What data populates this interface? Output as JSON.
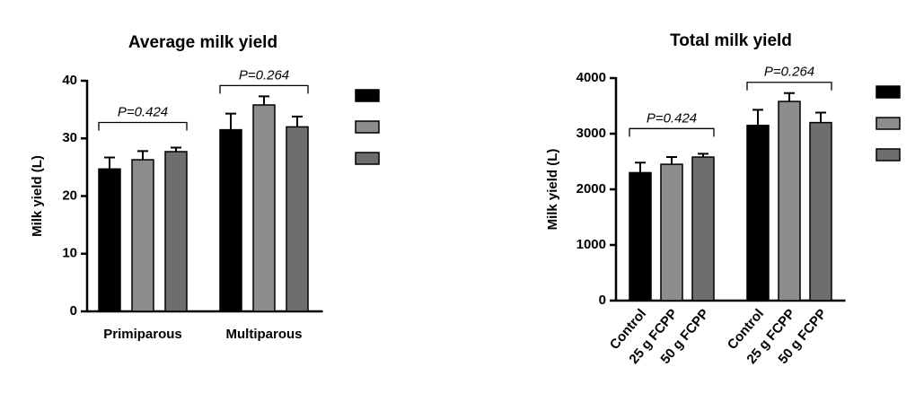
{
  "chart_data": [
    {
      "type": "bar",
      "title": "Average milk yield",
      "y_label": "Milk yield (L)",
      "categories": [
        "Primiparous",
        "Multiparous"
      ],
      "group_annotations": [
        "P=0.424",
        "P=0.264"
      ],
      "series": [
        {
          "color": "#000000",
          "values": [
            24.7,
            31.5
          ],
          "errors": [
            2.0,
            2.8
          ]
        },
        {
          "color": "#8c8c8c",
          "values": [
            26.3,
            35.8
          ],
          "errors": [
            1.5,
            1.5
          ]
        },
        {
          "color": "#6e6e6e",
          "values": [
            27.7,
            32.0
          ],
          "errors": [
            0.7,
            1.8
          ]
        }
      ],
      "ylim": [
        0,
        40
      ],
      "yticks": [
        0,
        10,
        20,
        30,
        40
      ]
    },
    {
      "type": "bar",
      "title": "Total milk yield",
      "y_label": "Milk yield (L)",
      "categories": [
        null,
        null
      ],
      "bar_labels": [
        "Control",
        "25 g FCPP",
        "50 g FCPP"
      ],
      "group_annotations": [
        "P=0.424",
        "P=0.264"
      ],
      "series": [
        {
          "color": "#000000",
          "values": [
            2300,
            3150
          ],
          "errors": [
            180,
            280
          ]
        },
        {
          "color": "#8c8c8c",
          "values": [
            2450,
            3580
          ],
          "errors": [
            130,
            150
          ]
        },
        {
          "color": "#6e6e6e",
          "values": [
            2580,
            3200
          ],
          "errors": [
            60,
            180
          ]
        }
      ],
      "ylim": [
        0,
        4000
      ],
      "yticks": [
        0,
        1000,
        2000,
        3000,
        4000
      ]
    }
  ]
}
